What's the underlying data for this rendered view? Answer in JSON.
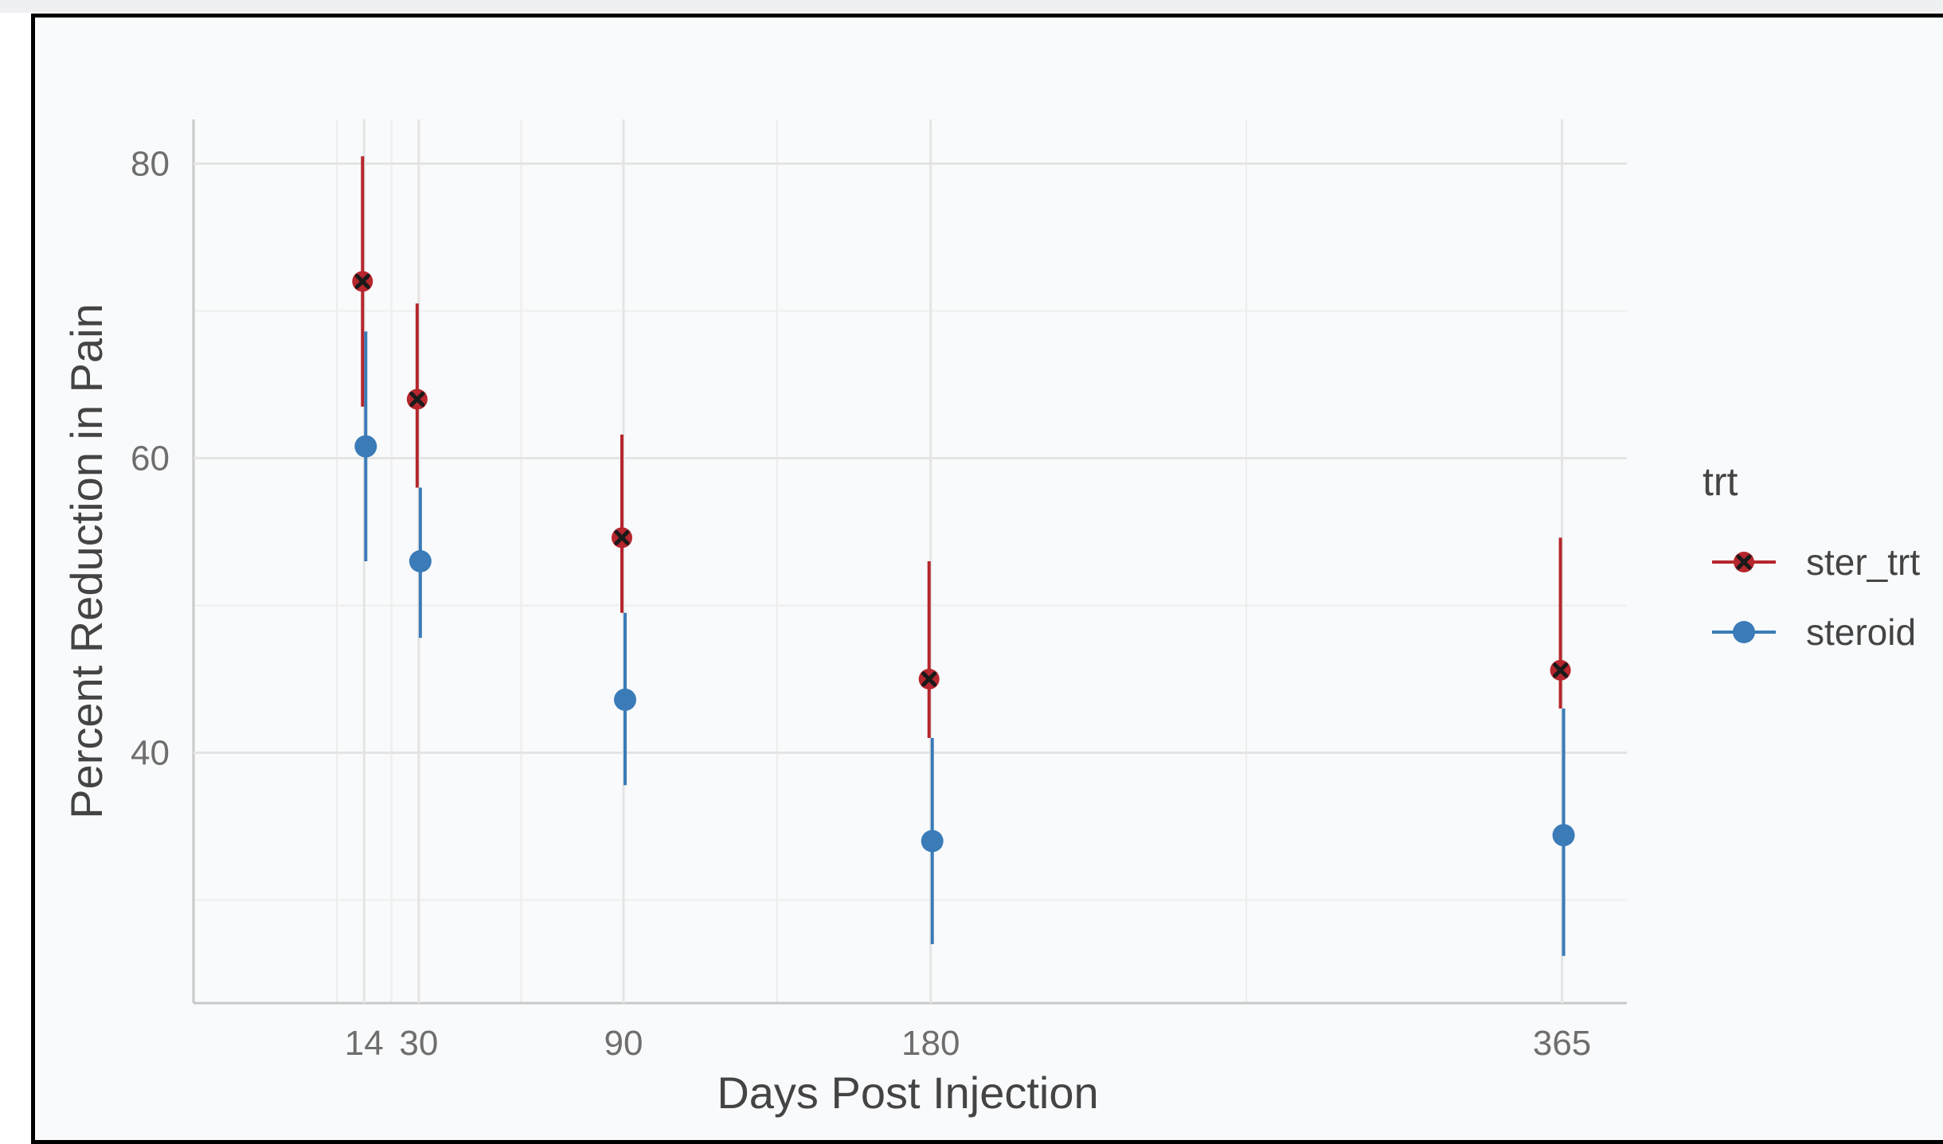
{
  "chart_data": {
    "type": "scatter",
    "xlabel": "Days Post Injection",
    "ylabel": "Percent Reduction in Pain",
    "x_ticks": [
      14,
      30,
      90,
      180,
      365
    ],
    "y_ticks": [
      40,
      60,
      80
    ],
    "xlim": [
      -36,
      384
    ],
    "ylim": [
      23,
      83
    ],
    "grid": true,
    "legend": {
      "title": "trt",
      "position": "right"
    },
    "series": [
      {
        "name": "ster_trt",
        "color": "#b5262d",
        "marker": "x-circle",
        "points": [
          {
            "x": 14,
            "y": 72,
            "low": 63.5,
            "high": 80.5
          },
          {
            "x": 30,
            "y": 64,
            "low": 58,
            "high": 70.5
          },
          {
            "x": 90,
            "y": 54.6,
            "low": 49.5,
            "high": 61.6
          },
          {
            "x": 180,
            "y": 45,
            "low": 41,
            "high": 53
          },
          {
            "x": 365,
            "y": 45.6,
            "low": 43,
            "high": 54.6
          }
        ]
      },
      {
        "name": "steroid",
        "color": "#3a7bb8",
        "marker": "circle",
        "points": [
          {
            "x": 14,
            "y": 60.8,
            "low": 53,
            "high": 68.6
          },
          {
            "x": 30,
            "y": 53,
            "low": 47.8,
            "high": 58
          },
          {
            "x": 90,
            "y": 43.6,
            "low": 37.8,
            "high": 49.5
          },
          {
            "x": 180,
            "y": 34,
            "low": 27,
            "high": 41
          },
          {
            "x": 365,
            "y": 34.4,
            "low": 26.2,
            "high": 43
          }
        ]
      }
    ]
  }
}
